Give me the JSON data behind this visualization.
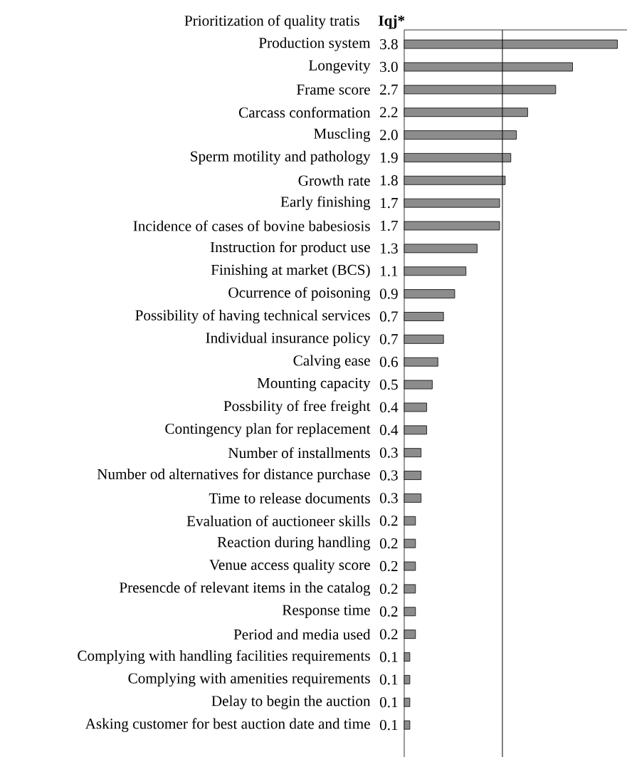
{
  "chart_data": {
    "type": "bar",
    "orientation": "horizontal",
    "title": "Prioritization of quality tratis",
    "annotations": [
      "Iqj*"
    ],
    "categories": [
      "Production system",
      "Longevity",
      "Frame score",
      "Carcass conformation",
      "Muscling",
      "Sperm motility and pathology",
      "Growth rate",
      "Early finishing",
      "Incidence of cases of bovine babesiosis",
      "Instruction for product use",
      "Finishing at market (BCS)",
      "Ocurrence of poisoning",
      "Possibility of having technical services",
      "Individual insurance policy",
      "Calving ease",
      "Mounting capacity",
      "Possbility of free freight",
      "Contingency plan for replacement",
      "Number of installments",
      "Number od alternatives for distance purchase",
      "Time to release documents",
      "Evaluation of auctioneer skills",
      "Reaction during handling",
      "Venue access quality score",
      "Presencde of relevant items in the catalog",
      "Response time",
      "Period and media used",
      "Complying with handling facilities requirements",
      "Complying with amenities requirements",
      "Delay to begin the auction",
      "Asking customer for best auction date and time"
    ],
    "values": [
      3.8,
      3.0,
      2.7,
      2.2,
      2.0,
      1.9,
      1.8,
      1.7,
      1.7,
      1.3,
      1.1,
      0.9,
      0.7,
      0.7,
      0.6,
      0.5,
      0.4,
      0.4,
      0.3,
      0.3,
      0.3,
      0.2,
      0.2,
      0.2,
      0.2,
      0.2,
      0.2,
      0.1,
      0.1,
      0.1,
      0.1
    ],
    "color": "#8c8c8c",
    "value_labels": [
      "3.8",
      "3.0",
      "2.7",
      "2.2",
      "2.0",
      "1.9",
      "1.8",
      "1.7",
      "1.7",
      "1.3",
      "1.1",
      "0.9",
      "0.7",
      "0.7",
      "0.6",
      "0.5",
      "0.4",
      "0.4",
      "0.3",
      "0.3",
      "0.3",
      "0.2",
      "0.2",
      "0.2",
      "0.2",
      "0.2",
      "0.2",
      "0.1",
      "0.1",
      "0.1",
      "0.1"
    ],
    "ref_lines": [
      {
        "axis": "x",
        "value": 1.75
      }
    ]
  }
}
